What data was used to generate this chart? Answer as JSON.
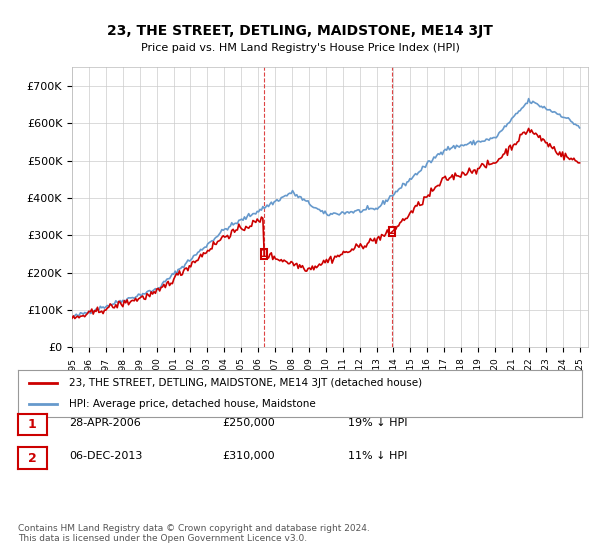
{
  "title": "23, THE STREET, DETLING, MAIDSTONE, ME14 3JT",
  "subtitle": "Price paid vs. HM Land Registry's House Price Index (HPI)",
  "ylabel_ticks": [
    "£0",
    "£100K",
    "£200K",
    "£300K",
    "£400K",
    "£500K",
    "£600K",
    "£700K"
  ],
  "ylim": [
    0,
    750000
  ],
  "xlim_start": 1995.0,
  "xlim_end": 2025.5,
  "sale1_year": 2006.33,
  "sale1_price": 250000,
  "sale1_label": "1",
  "sale2_year": 2013.92,
  "sale2_price": 310000,
  "sale2_label": "2",
  "red_line_color": "#cc0000",
  "blue_line_color": "#6699cc",
  "marker_box_color": "#cc0000",
  "vline_color": "#dd4444",
  "grid_color": "#cccccc",
  "background_color": "#ffffff",
  "legend1_text": "23, THE STREET, DETLING, MAIDSTONE, ME14 3JT (detached house)",
  "legend2_text": "HPI: Average price, detached house, Maidstone",
  "info1_num": "1",
  "info1_date": "28-APR-2006",
  "info1_price": "£250,000",
  "info1_hpi": "19% ↓ HPI",
  "info2_num": "2",
  "info2_date": "06-DEC-2013",
  "info2_price": "£310,000",
  "info2_hpi": "11% ↓ HPI",
  "footer": "Contains HM Land Registry data © Crown copyright and database right 2024.\nThis data is licensed under the Open Government Licence v3.0."
}
